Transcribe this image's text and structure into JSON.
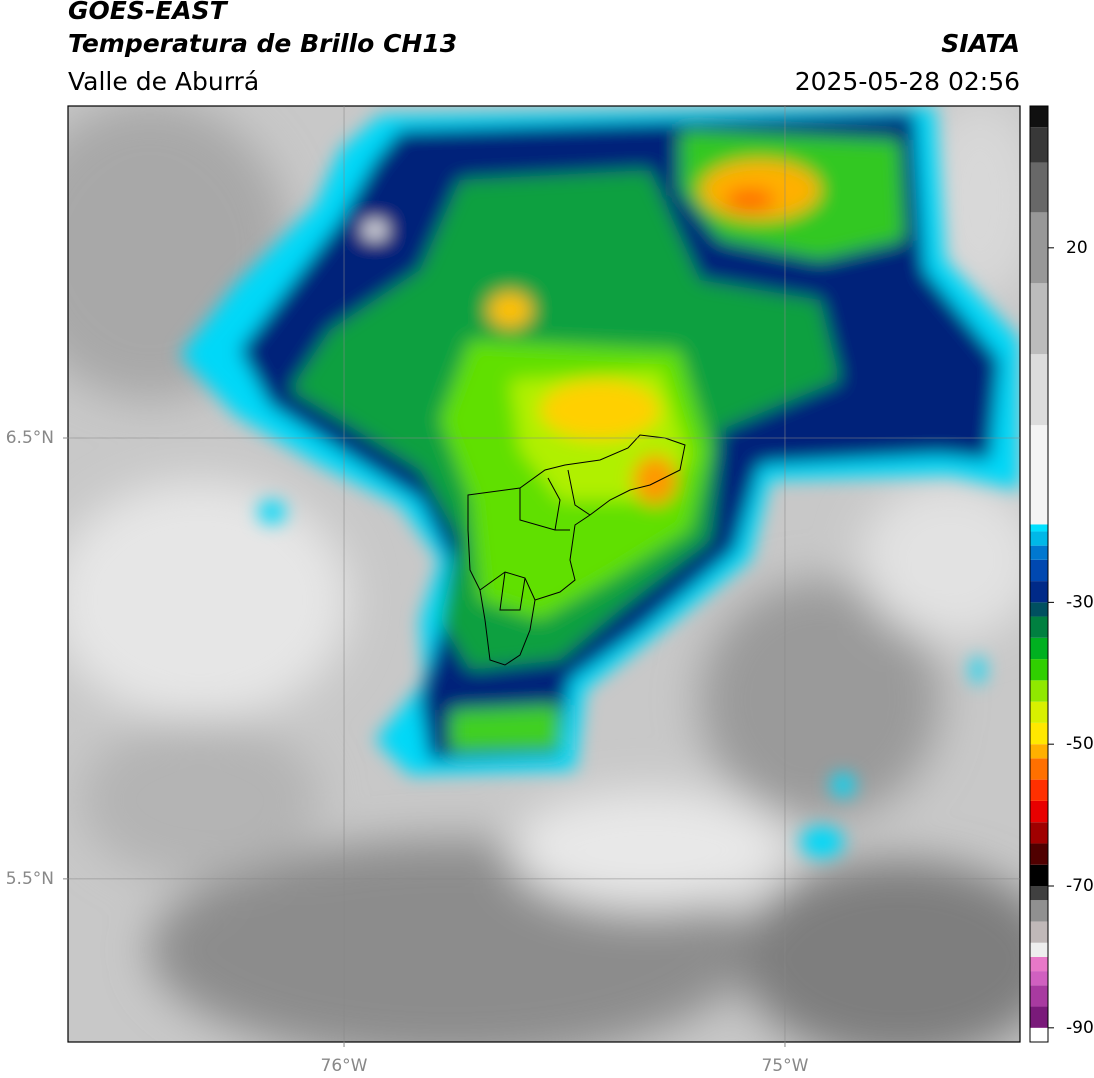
{
  "header": {
    "title": "GOES-EAST",
    "subtitle": "Temperatura de Brillo CH13",
    "region": "Valle de Aburrá",
    "source": "SIATA",
    "timestamp": "2025-05-28 02:56"
  },
  "chart_data": {
    "type": "map",
    "xlim": [
      -76.626,
      -74.467
    ],
    "ylim": [
      5.13,
      7.253
    ],
    "xticks": [
      {
        "value": -76,
        "label": "76°W"
      },
      {
        "value": -75,
        "label": "75°W"
      }
    ],
    "yticks": [
      {
        "value": 6.5,
        "label": "6.5°N"
      },
      {
        "value": 5.5,
        "label": "5.5°N"
      }
    ],
    "grid": true,
    "colorbar": {
      "lim": [
        -92,
        40
      ],
      "ticks": [
        20,
        -30,
        -50,
        -70,
        -90
      ],
      "bands": [
        {
          "from": -92,
          "color": "#ffffff"
        },
        {
          "from": -90,
          "color": "#7a1a7a"
        },
        {
          "from": -87,
          "color": "#a83aa0"
        },
        {
          "from": -84,
          "color": "#d060c0"
        },
        {
          "from": -82,
          "color": "#e878c8"
        },
        {
          "from": -80,
          "color": "#eeeeee"
        },
        {
          "from": -78,
          "color": "#c0b8b8"
        },
        {
          "from": -75,
          "color": "#909090"
        },
        {
          "from": -72,
          "color": "#404040"
        },
        {
          "from": -70,
          "color": "#000000"
        },
        {
          "from": -67,
          "color": "#500000"
        },
        {
          "from": -64,
          "color": "#a00000"
        },
        {
          "from": -61,
          "color": "#e80000"
        },
        {
          "from": -58,
          "color": "#ff3000"
        },
        {
          "from": -55,
          "color": "#ff7000"
        },
        {
          "from": -52,
          "color": "#ffb000"
        },
        {
          "from": -50,
          "color": "#ffe800"
        },
        {
          "from": -47,
          "color": "#d8f000"
        },
        {
          "from": -44,
          "color": "#90e800"
        },
        {
          "from": -41,
          "color": "#30d000"
        },
        {
          "from": -38,
          "color": "#00b020"
        },
        {
          "from": -35,
          "color": "#008040"
        },
        {
          "from": -32,
          "color": "#005060"
        },
        {
          "from": -30,
          "color": "#002a88"
        },
        {
          "from": -27,
          "color": "#0048b0"
        },
        {
          "from": -24,
          "color": "#0078d0"
        },
        {
          "from": -22,
          "color": "#00b8e8"
        },
        {
          "from": -20,
          "color": "#00e0ff"
        },
        {
          "from": -19,
          "color": "#f4f4f4"
        },
        {
          "from": -5,
          "color": "#dcdcdc"
        },
        {
          "from": 5,
          "color": "#bcbcbc"
        },
        {
          "from": 15,
          "color": "#989898"
        },
        {
          "from": 25,
          "color": "#686868"
        },
        {
          "from": 32,
          "color": "#383838"
        },
        {
          "from": 37,
          "color": "#101010"
        }
      ]
    }
  }
}
